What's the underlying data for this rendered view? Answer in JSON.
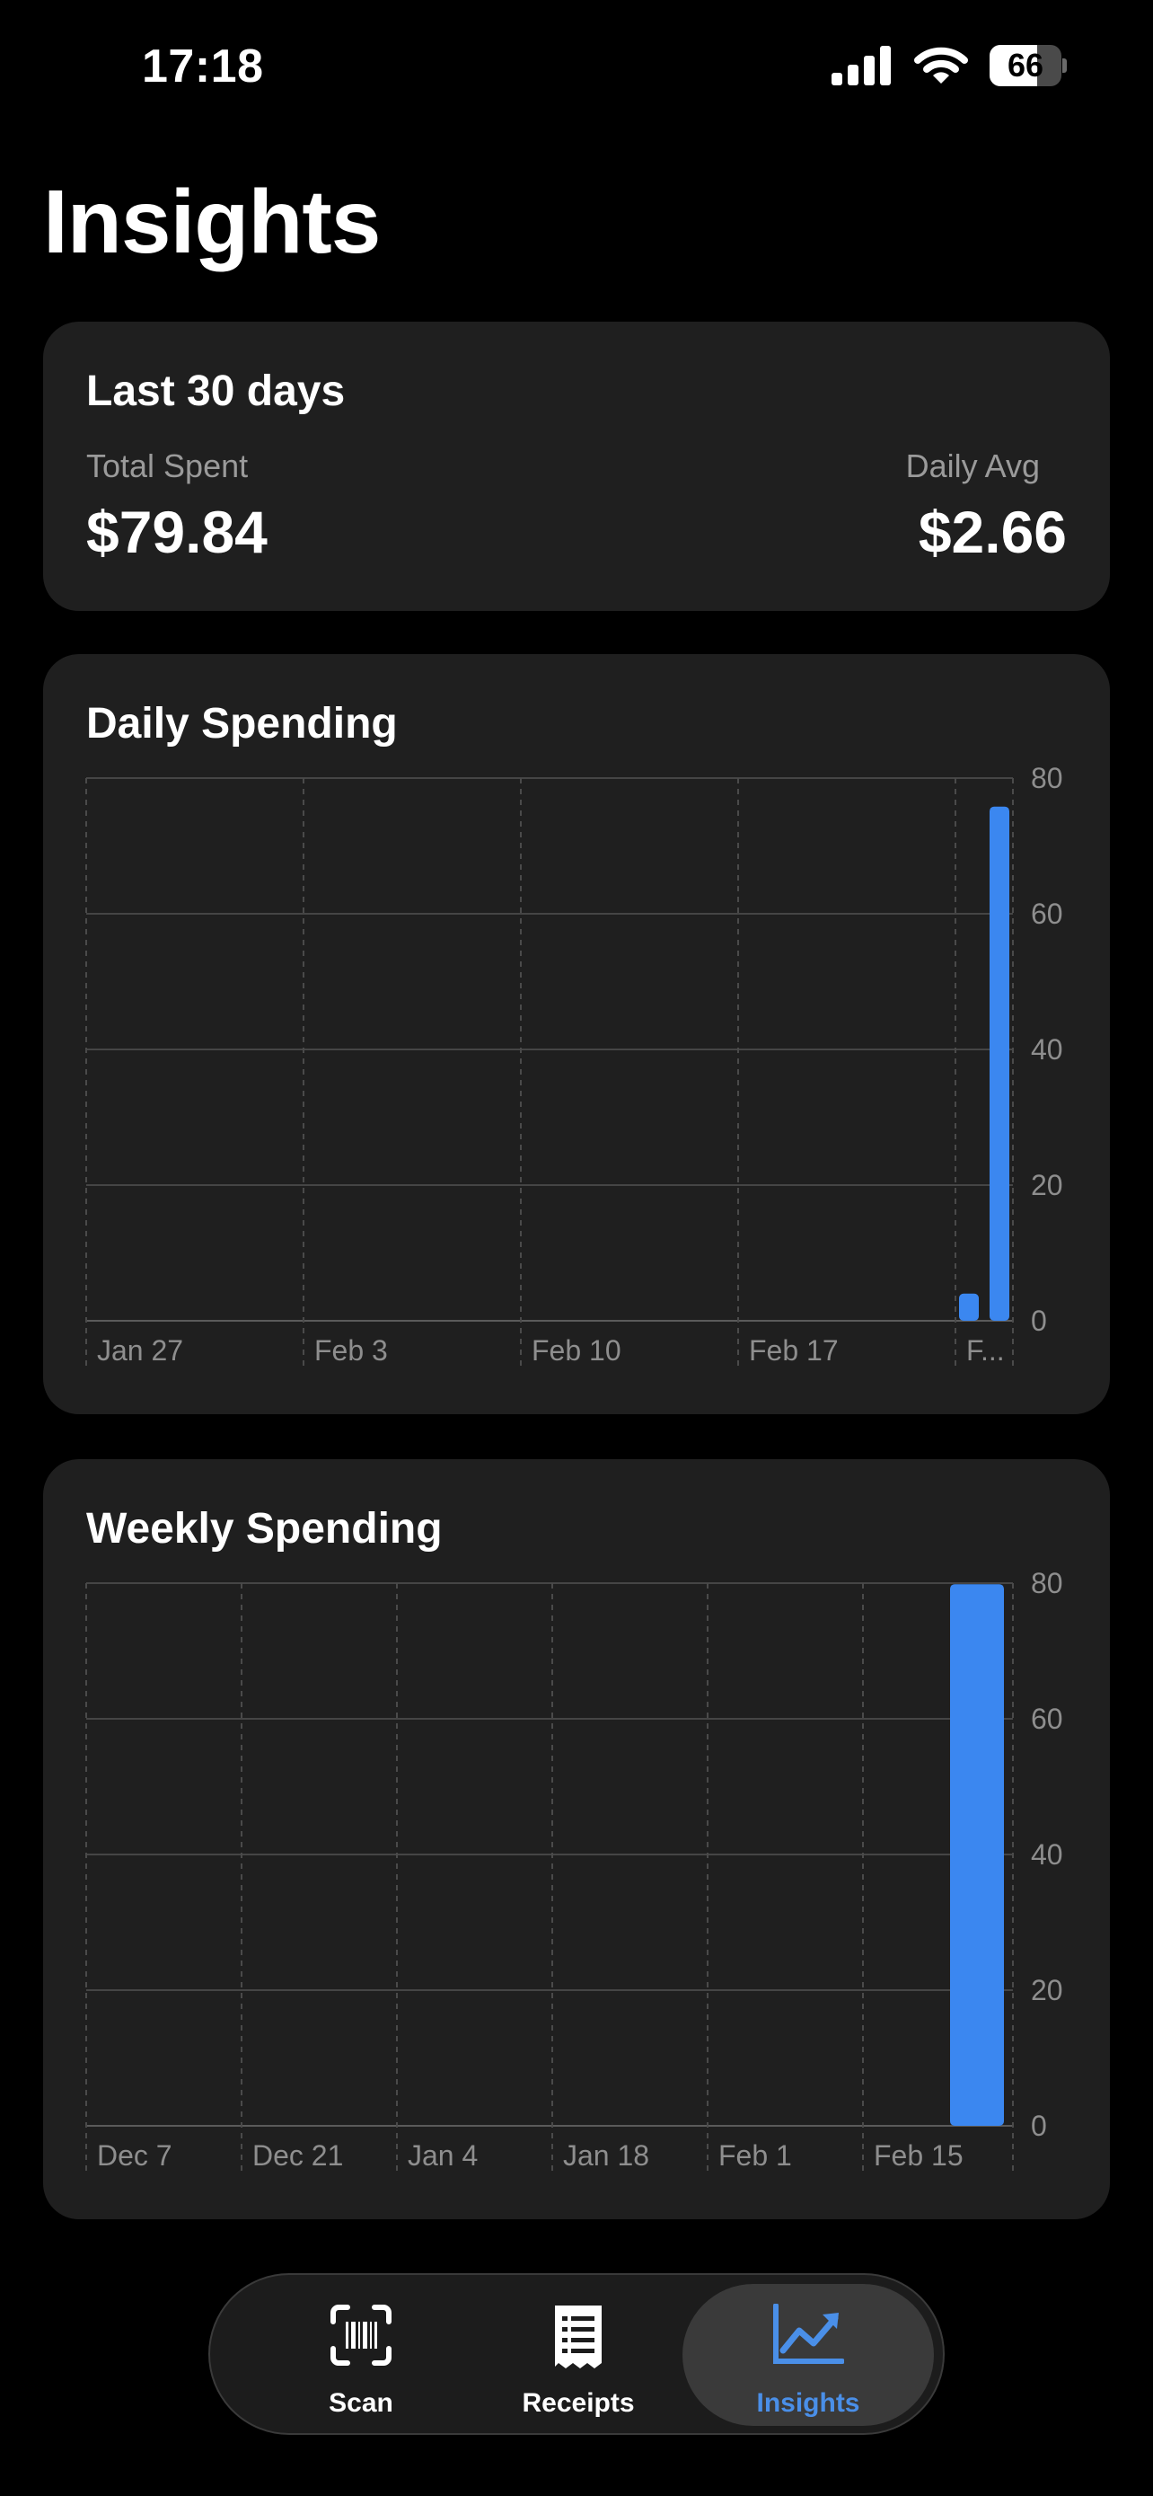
{
  "status_bar": {
    "time": "17:18",
    "battery": "66",
    "battery_level": 0.66
  },
  "page": {
    "title": "Insights"
  },
  "summary": {
    "title": "Last 30 days",
    "total_label": "Total Spent",
    "total_value": "$79.84",
    "avg_label": "Daily Avg",
    "avg_value": "$2.66"
  },
  "chart_data": [
    {
      "type": "bar",
      "title": "Daily Spending",
      "x_tick_labels": [
        "Jan 27",
        "Feb 3",
        "Feb 10",
        "Feb 17",
        "F..."
      ],
      "x_range": [
        "Jan 27",
        "Feb 26"
      ],
      "y_ticks": [
        0,
        20,
        40,
        60,
        80
      ],
      "ylim": [
        0,
        80
      ],
      "bars": [
        {
          "x": "Feb 25",
          "value": 4
        },
        {
          "x": "Feb 26",
          "value": 75.8
        }
      ],
      "color": "#3b87f0",
      "grid": true
    },
    {
      "type": "bar",
      "title": "Weekly Spending",
      "x_tick_labels": [
        "Dec 7",
        "Dec 21",
        "Jan 4",
        "Jan 18",
        "Feb 1",
        "Feb 15"
      ],
      "x_range": [
        "Dec 7",
        "Feb 28"
      ],
      "y_ticks": [
        0,
        20,
        40,
        60,
        80
      ],
      "ylim": [
        0,
        80
      ],
      "bars": [
        {
          "x": "Feb 22",
          "value": 79.84
        }
      ],
      "color": "#3b87f0",
      "grid": true
    }
  ],
  "tab_bar": {
    "tabs": [
      {
        "label": "Scan",
        "icon": "barcode-scan-icon",
        "active": false
      },
      {
        "label": "Receipts",
        "icon": "receipt-icon",
        "active": false
      },
      {
        "label": "Insights",
        "icon": "chart-line-icon",
        "active": true
      }
    ],
    "accent": "#4a8fe8"
  }
}
